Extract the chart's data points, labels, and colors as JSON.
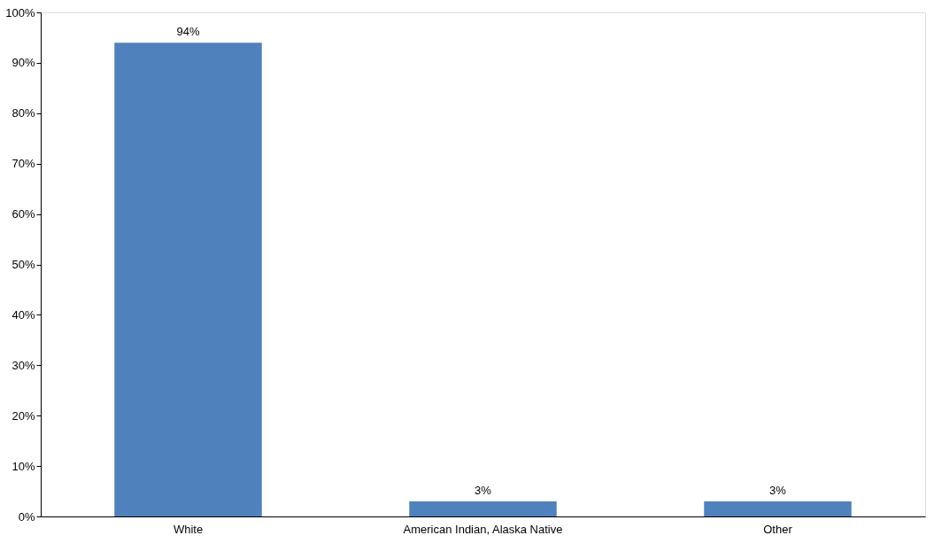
{
  "chart_data": {
    "type": "bar",
    "categories": [
      "White",
      "American Indian, Alaska Native",
      "Other"
    ],
    "values": [
      94,
      3,
      3
    ],
    "value_labels": [
      "94%",
      "3%",
      "3%"
    ],
    "color": "#4f81bd",
    "ylim": [
      0,
      100
    ],
    "yticks": [
      {
        "value": 0,
        "label": "0%"
      },
      {
        "value": 10,
        "label": "10%"
      },
      {
        "value": 20,
        "label": "20%"
      },
      {
        "value": 30,
        "label": "30%"
      },
      {
        "value": 40,
        "label": "40%"
      },
      {
        "value": 50,
        "label": "50%"
      },
      {
        "value": 60,
        "label": "60%"
      },
      {
        "value": 70,
        "label": "70%"
      },
      {
        "value": 80,
        "label": "80%"
      },
      {
        "value": 90,
        "label": "90%"
      },
      {
        "value": 100,
        "label": "100%"
      }
    ],
    "grid": false
  }
}
